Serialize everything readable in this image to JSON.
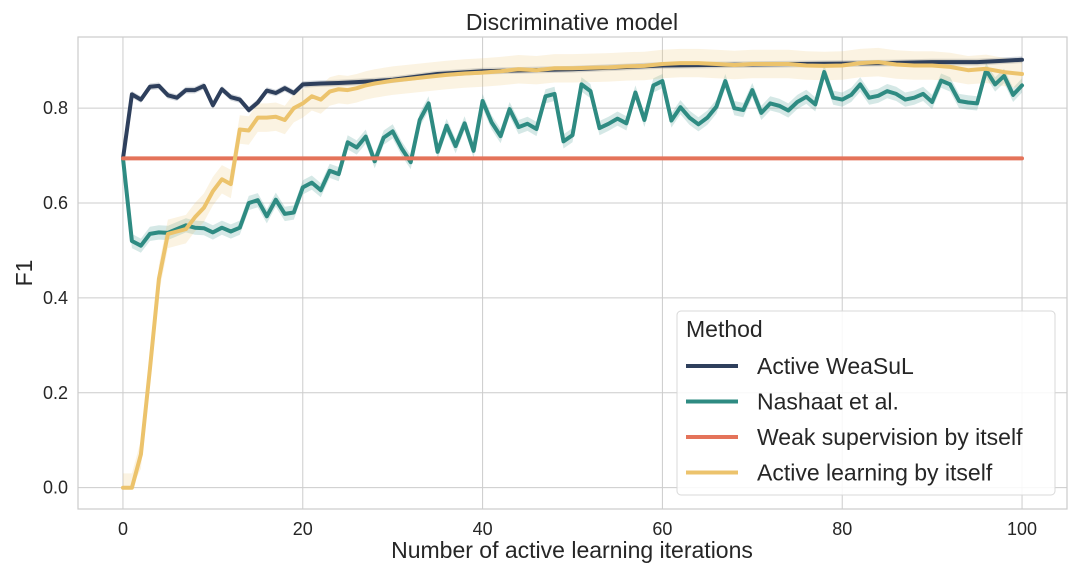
{
  "chart_data": {
    "type": "line",
    "title": "Discriminative model",
    "xlabel": "Number of active learning iterations",
    "ylabel": "F1",
    "xlim": [
      -5,
      105
    ],
    "ylim": [
      -0.045,
      0.95
    ],
    "xticks": [
      0,
      20,
      40,
      60,
      80,
      100
    ],
    "yticks": [
      0.0,
      0.2,
      0.4,
      0.6,
      0.8
    ],
    "xtick_labels": [
      "0",
      "20",
      "40",
      "60",
      "80",
      "100"
    ],
    "ytick_labels": [
      "0.0",
      "0.2",
      "0.4",
      "0.6",
      "0.8"
    ],
    "grid": true,
    "legend": {
      "title": "Method",
      "position": "lower-right"
    },
    "series": [
      {
        "name": "Active WeaSuL",
        "color": "#2e3f5c",
        "band": 0.007,
        "x": [
          0,
          1,
          2,
          3,
          4,
          5,
          6,
          7,
          8,
          9,
          10,
          11,
          12,
          13,
          14,
          15,
          16,
          17,
          18,
          19,
          20,
          22,
          24,
          26,
          28,
          30,
          35,
          40,
          45,
          50,
          55,
          60,
          65,
          70,
          75,
          80,
          85,
          90,
          95,
          98,
          100
        ],
        "y": [
          0.694,
          0.829,
          0.818,
          0.845,
          0.847,
          0.827,
          0.822,
          0.838,
          0.838,
          0.847,
          0.806,
          0.84,
          0.823,
          0.818,
          0.796,
          0.812,
          0.837,
          0.832,
          0.842,
          0.832,
          0.85,
          0.852,
          0.853,
          0.855,
          0.857,
          0.86,
          0.872,
          0.878,
          0.88,
          0.882,
          0.886,
          0.89,
          0.891,
          0.892,
          0.893,
          0.894,
          0.895,
          0.897,
          0.897,
          0.9,
          0.902
        ]
      },
      {
        "name": "Nashaat et al.",
        "color": "#2e8b82",
        "band": 0.015,
        "x": [
          0,
          1,
          2,
          3,
          4,
          5,
          6,
          7,
          8,
          9,
          10,
          11,
          12,
          13,
          14,
          15,
          16,
          17,
          18,
          19,
          20,
          21,
          22,
          23,
          24,
          25,
          26,
          27,
          28,
          29,
          30,
          31,
          32,
          33,
          34,
          35,
          36,
          37,
          38,
          39,
          40,
          41,
          42,
          43,
          44,
          45,
          46,
          47,
          48,
          49,
          50,
          51,
          52,
          53,
          54,
          55,
          56,
          57,
          58,
          59,
          60,
          61,
          62,
          63,
          64,
          65,
          66,
          67,
          68,
          69,
          70,
          71,
          72,
          73,
          74,
          75,
          76,
          77,
          78,
          79,
          80,
          81,
          82,
          83,
          84,
          85,
          86,
          87,
          88,
          89,
          90,
          91,
          92,
          93,
          94,
          95,
          96,
          97,
          98,
          99,
          100
        ],
        "y": [
          0.694,
          0.52,
          0.51,
          0.535,
          0.538,
          0.537,
          0.545,
          0.553,
          0.548,
          0.547,
          0.538,
          0.548,
          0.54,
          0.548,
          0.6,
          0.606,
          0.572,
          0.607,
          0.577,
          0.58,
          0.633,
          0.643,
          0.627,
          0.668,
          0.661,
          0.728,
          0.717,
          0.74,
          0.688,
          0.738,
          0.751,
          0.715,
          0.686,
          0.775,
          0.81,
          0.708,
          0.763,
          0.72,
          0.768,
          0.71,
          0.815,
          0.77,
          0.741,
          0.798,
          0.76,
          0.767,
          0.756,
          0.825,
          0.83,
          0.73,
          0.743,
          0.85,
          0.836,
          0.758,
          0.767,
          0.778,
          0.768,
          0.833,
          0.775,
          0.848,
          0.857,
          0.774,
          0.802,
          0.78,
          0.766,
          0.78,
          0.803,
          0.857,
          0.8,
          0.796,
          0.838,
          0.79,
          0.81,
          0.805,
          0.795,
          0.813,
          0.824,
          0.808,
          0.876,
          0.822,
          0.818,
          0.828,
          0.85,
          0.822,
          0.826,
          0.836,
          0.83,
          0.818,
          0.822,
          0.83,
          0.813,
          0.858,
          0.85,
          0.815,
          0.812,
          0.81,
          0.88,
          0.85,
          0.868,
          0.828,
          0.848
        ]
      },
      {
        "name": "Weak supervision by itself",
        "color": "#e4735a",
        "band": 0,
        "x": [
          0,
          100
        ],
        "y": [
          0.694,
          0.694
        ]
      },
      {
        "name": "Active learning by itself",
        "color": "#ecc36c",
        "band": 0.03,
        "x": [
          0,
          1,
          2,
          3,
          4,
          5,
          6,
          7,
          8,
          9,
          10,
          11,
          12,
          13,
          14,
          15,
          16,
          17,
          18,
          19,
          20,
          21,
          22,
          23,
          24,
          25,
          26,
          27,
          28,
          29,
          30,
          32,
          34,
          36,
          38,
          40,
          42,
          44,
          46,
          48,
          50,
          52,
          54,
          56,
          58,
          60,
          62,
          64,
          66,
          68,
          70,
          72,
          74,
          76,
          78,
          80,
          82,
          84,
          86,
          88,
          90,
          92,
          94,
          96,
          98,
          100
        ],
        "y": [
          0.0,
          0.0,
          0.07,
          0.25,
          0.44,
          0.535,
          0.54,
          0.545,
          0.57,
          0.59,
          0.625,
          0.65,
          0.64,
          0.755,
          0.753,
          0.78,
          0.78,
          0.782,
          0.775,
          0.8,
          0.81,
          0.825,
          0.818,
          0.835,
          0.84,
          0.838,
          0.842,
          0.848,
          0.852,
          0.855,
          0.858,
          0.862,
          0.866,
          0.87,
          0.873,
          0.875,
          0.878,
          0.882,
          0.88,
          0.884,
          0.884,
          0.885,
          0.886,
          0.888,
          0.889,
          0.893,
          0.895,
          0.895,
          0.893,
          0.891,
          0.893,
          0.893,
          0.893,
          0.89,
          0.889,
          0.89,
          0.895,
          0.897,
          0.892,
          0.89,
          0.89,
          0.887,
          0.88,
          0.883,
          0.876,
          0.872
        ]
      }
    ]
  }
}
